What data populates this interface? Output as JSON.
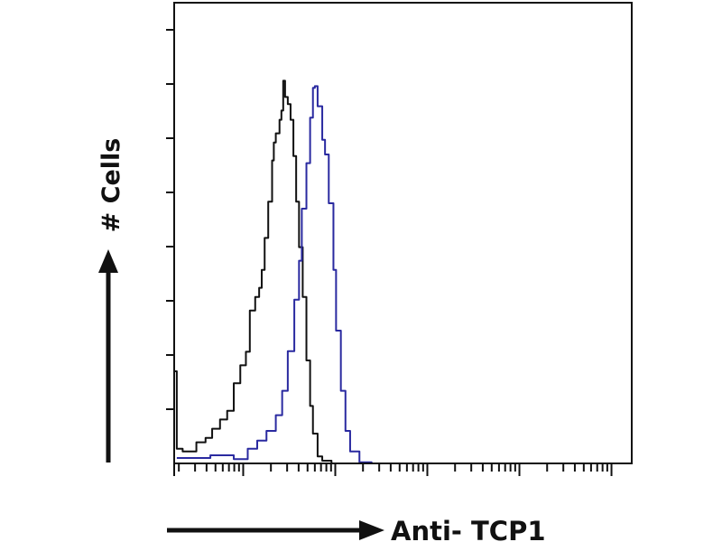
{
  "chart_data": {
    "type": "line",
    "title": "",
    "xlabel": "Anti- TCP1",
    "ylabel": "# Cells",
    "x_scale": "log",
    "xlim": [
      1.78,
      166000
    ],
    "ylim": [
      0,
      8.5
    ],
    "x_major_ticks": [
      10,
      100,
      1000,
      10000,
      100000
    ],
    "y_ticks": [
      1,
      2,
      3,
      4,
      5,
      6,
      7,
      8
    ],
    "tick_labels_shown": false,
    "grid": false,
    "legend": "none",
    "series": [
      {
        "color": "#111111",
        "x": [
          1.8,
          1.9,
          2.2,
          3.1,
          3.9,
          4.6,
          5.6,
          6.7,
          7.9,
          9.3,
          10.7,
          11.8,
          13.5,
          14.9,
          15.9,
          17.1,
          18.7,
          20.6,
          21.5,
          22.6,
          24.8,
          26.0,
          27.2,
          28.5,
          30.5,
          32.7,
          35.1,
          37.6,
          40.4,
          44.3,
          48.6,
          53.3,
          57.2,
          64.3,
          72.2,
          91
        ],
        "y": [
          1.7,
          0.27,
          0.22,
          0.39,
          0.47,
          0.64,
          0.81,
          0.97,
          1.48,
          1.81,
          2.06,
          2.82,
          3.07,
          3.24,
          3.57,
          4.16,
          4.83,
          5.59,
          5.92,
          6.09,
          6.34,
          6.51,
          7.06,
          6.76,
          6.63,
          6.34,
          5.67,
          4.83,
          3.99,
          3.07,
          1.9,
          1.06,
          0.55,
          0.13,
          0.05,
          0
        ]
      },
      {
        "color": "#2a2aa0",
        "x": [
          1.9,
          4.4,
          7.9,
          11.2,
          14.2,
          17.9,
          22.6,
          26.5,
          30.5,
          35.9,
          40.4,
          43.3,
          48.6,
          53.3,
          57.2,
          60.0,
          64.3,
          72.2,
          77.4,
          85.0,
          95.5,
          102,
          115,
          129,
          145,
          183,
          248
        ],
        "y": [
          0.1,
          0.15,
          0.08,
          0.27,
          0.42,
          0.6,
          0.89,
          1.34,
          2.07,
          3.02,
          3.74,
          4.7,
          5.54,
          6.38,
          6.93,
          6.96,
          6.59,
          5.97,
          5.7,
          4.8,
          3.57,
          2.45,
          1.34,
          0.6,
          0.22,
          0.02,
          0
        ]
      }
    ]
  }
}
